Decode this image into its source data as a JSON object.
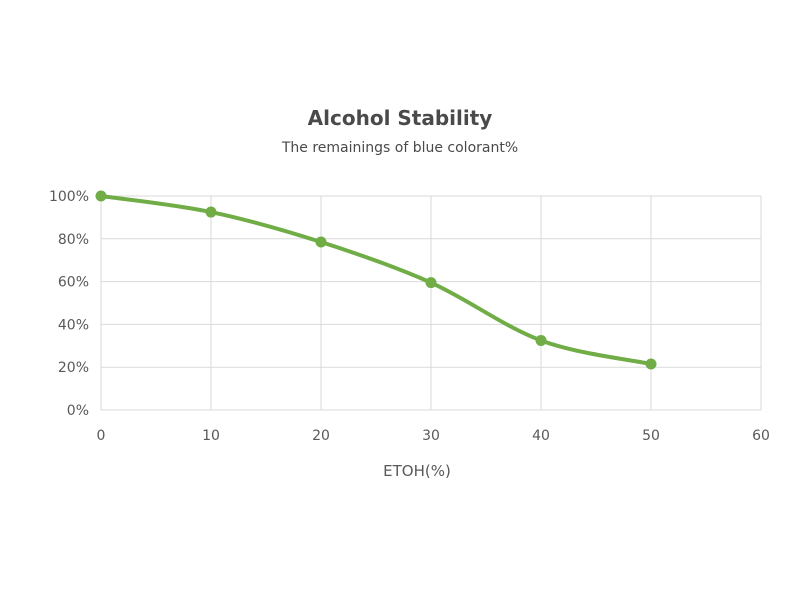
{
  "chart_data": {
    "type": "line",
    "title": "Alcohol Stability",
    "subtitle": "The remainings of blue colorant%",
    "xlabel": "ETOH(%)",
    "ylabel": "",
    "xlim": [
      0,
      60
    ],
    "ylim": [
      0,
      100
    ],
    "x_ticks": [
      0,
      10,
      20,
      30,
      40,
      50,
      60
    ],
    "y_ticks": [
      0,
      20,
      40,
      60,
      80,
      100
    ],
    "y_tick_labels": [
      "0%",
      "20%",
      "40%",
      "60%",
      "80%",
      "100%"
    ],
    "grid": true,
    "legend": "none",
    "series": [
      {
        "x": [
          0,
          10,
          20,
          30,
          40,
          50
        ],
        "values": [
          100,
          92.5,
          78.5,
          59.5,
          32.5,
          21.5
        ],
        "color": "#70ad47"
      }
    ]
  }
}
